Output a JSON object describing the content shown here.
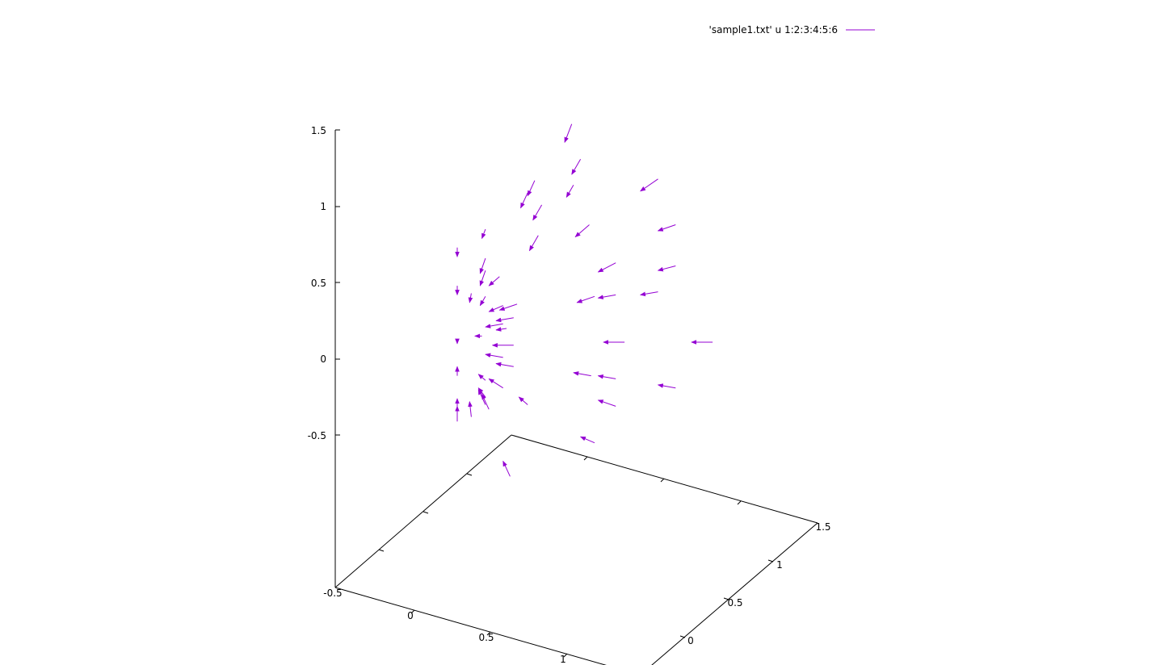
{
  "chart_data": {
    "type": "vector-field-3d",
    "legend": {
      "label": "'sample1.txt' u 1:2:3:4:5:6",
      "position": "top-right"
    },
    "color": "#9400d3",
    "z_ticks": [
      "1.5",
      "1",
      "0.5",
      "0",
      "-0.5"
    ],
    "x_ticks": [
      "-0.5",
      "0",
      "0.5",
      "1"
    ],
    "y_ticks": [
      "0",
      "0.5",
      "1",
      "1.5"
    ],
    "vectors": [
      {
        "x": 0.1,
        "y": 0.6,
        "z": 0.62,
        "dx": 0.0,
        "dy": 0.0,
        "dz": -0.06
      },
      {
        "x": 0.1,
        "y": 0.6,
        "z": 0.37,
        "dx": 0.0,
        "dy": 0.0,
        "dz": -0.06
      },
      {
        "x": 0.1,
        "y": 0.6,
        "z": 0.0,
        "dx": 0.0,
        "dy": 0.0,
        "dz": -0.01
      },
      {
        "x": 0.1,
        "y": 0.6,
        "z": -0.22,
        "dx": 0.0,
        "dy": 0.0,
        "dz": 0.06
      },
      {
        "x": 0.1,
        "y": 0.6,
        "z": -0.43,
        "dx": 0.0,
        "dy": 0.0,
        "dz": 0.06
      },
      {
        "x": 0.1,
        "y": 0.6,
        "z": -0.52,
        "dx": 0.0,
        "dy": 0.0,
        "dz": 0.1
      },
      {
        "x": 0.18,
        "y": 0.6,
        "z": 0.32,
        "dx": -0.01,
        "dy": 0.0,
        "dz": -0.06
      },
      {
        "x": 0.18,
        "y": 0.6,
        "z": -0.49,
        "dx": -0.01,
        "dy": 0.0,
        "dz": 0.1
      },
      {
        "x": 0.26,
        "y": 0.6,
        "z": 0.74,
        "dx": -0.02,
        "dy": 0.0,
        "dz": -0.06
      },
      {
        "x": 0.26,
        "y": 0.6,
        "z": 0.55,
        "dx": -0.03,
        "dy": 0.0,
        "dz": -0.1
      },
      {
        "x": 0.26,
        "y": 0.6,
        "z": 0.47,
        "dx": -0.03,
        "dy": 0.0,
        "dz": -0.1
      },
      {
        "x": 0.26,
        "y": 0.6,
        "z": 0.3,
        "dx": -0.03,
        "dy": 0.0,
        "dz": -0.06
      },
      {
        "x": 0.24,
        "y": 0.6,
        "z": 0.04,
        "dx": -0.04,
        "dy": 0.0,
        "dz": 0.0
      },
      {
        "x": 0.26,
        "y": 0.6,
        "z": -0.25,
        "dx": -0.04,
        "dy": 0.0,
        "dz": 0.04
      },
      {
        "x": 0.26,
        "y": 0.6,
        "z": -0.36,
        "dx": -0.04,
        "dy": 0.0,
        "dz": 0.06
      },
      {
        "x": 0.26,
        "y": 0.6,
        "z": -0.41,
        "dx": -0.04,
        "dy": 0.0,
        "dz": 0.1
      },
      {
        "x": 0.28,
        "y": 0.6,
        "z": -0.44,
        "dx": -0.04,
        "dy": 0.0,
        "dz": 0.1
      },
      {
        "x": 0.34,
        "y": 0.6,
        "z": 0.43,
        "dx": -0.06,
        "dy": 0.0,
        "dz": -0.06
      },
      {
        "x": 0.36,
        "y": 0.6,
        "z": 0.24,
        "dx": -0.08,
        "dy": 0.0,
        "dz": -0.04
      },
      {
        "x": 0.36,
        "y": 0.6,
        "z": 0.12,
        "dx": -0.1,
        "dy": 0.0,
        "dz": -0.02
      },
      {
        "x": 0.36,
        "y": 0.6,
        "z": -0.1,
        "dx": -0.1,
        "dy": 0.0,
        "dz": 0.02
      },
      {
        "x": 0.36,
        "y": 0.6,
        "z": -0.3,
        "dx": -0.08,
        "dy": 0.0,
        "dz": 0.06
      },
      {
        "x": 0.38,
        "y": 0.6,
        "z": 0.09,
        "dx": -0.06,
        "dy": 0.0,
        "dz": -0.01
      },
      {
        "x": 0.42,
        "y": 0.6,
        "z": 0.16,
        "dx": -0.1,
        "dy": 0.0,
        "dz": -0.02
      },
      {
        "x": 0.42,
        "y": 0.6,
        "z": -0.02,
        "dx": -0.12,
        "dy": 0.0,
        "dz": 0.0
      },
      {
        "x": 0.42,
        "y": 0.6,
        "z": -0.16,
        "dx": -0.1,
        "dy": 0.0,
        "dz": 0.02
      },
      {
        "x": 0.44,
        "y": 0.6,
        "z": 0.25,
        "dx": -0.1,
        "dy": 0.0,
        "dz": -0.04
      },
      {
        "x": 0.5,
        "y": 0.6,
        "z": 0.98,
        "dx": -0.04,
        "dy": 0.0,
        "dz": -0.1
      },
      {
        "x": 0.54,
        "y": 0.6,
        "z": 1.06,
        "dx": -0.04,
        "dy": 0.0,
        "dz": -0.1
      },
      {
        "x": 0.58,
        "y": 0.6,
        "z": 0.9,
        "dx": -0.05,
        "dy": 0.0,
        "dz": -0.1
      },
      {
        "x": 0.56,
        "y": 0.6,
        "z": 0.7,
        "dx": -0.05,
        "dy": 0.0,
        "dz": -0.1
      },
      {
        "x": 0.5,
        "y": 0.6,
        "z": -0.41,
        "dx": -0.05,
        "dy": 0.0,
        "dz": 0.05
      },
      {
        "x": 0.4,
        "y": 0.6,
        "z": -0.88,
        "dx": -0.04,
        "dy": 0.0,
        "dz": 0.1
      },
      {
        "x": 0.75,
        "y": 0.6,
        "z": 1.43,
        "dx": -0.04,
        "dy": 0.0,
        "dz": -0.12
      },
      {
        "x": 0.8,
        "y": 0.6,
        "z": 1.2,
        "dx": -0.05,
        "dy": 0.0,
        "dz": -0.1
      },
      {
        "x": 0.76,
        "y": 0.6,
        "z": 1.03,
        "dx": -0.04,
        "dy": 0.0,
        "dz": -0.08
      },
      {
        "x": 0.85,
        "y": 0.6,
        "z": 0.77,
        "dx": -0.08,
        "dy": 0.0,
        "dz": -0.08
      },
      {
        "x": 0.88,
        "y": 0.6,
        "z": 0.3,
        "dx": -0.1,
        "dy": 0.0,
        "dz": -0.04
      },
      {
        "x": 0.86,
        "y": 0.6,
        "z": -0.22,
        "dx": -0.1,
        "dy": 0.0,
        "dz": 0.02
      },
      {
        "x": 0.88,
        "y": 0.6,
        "z": -0.66,
        "dx": -0.08,
        "dy": 0.0,
        "dz": 0.04
      },
      {
        "x": 1.0,
        "y": 0.6,
        "z": 0.52,
        "dx": -0.1,
        "dy": 0.0,
        "dz": -0.06
      },
      {
        "x": 1.0,
        "y": 0.6,
        "z": 0.31,
        "dx": -0.1,
        "dy": 0.0,
        "dz": -0.02
      },
      {
        "x": 1.0,
        "y": 0.6,
        "z": -0.24,
        "dx": -0.1,
        "dy": 0.0,
        "dz": 0.02
      },
      {
        "x": 1.0,
        "y": 0.6,
        "z": -0.42,
        "dx": -0.1,
        "dy": 0.0,
        "dz": 0.04
      },
      {
        "x": 1.05,
        "y": 0.6,
        "z": 0.0,
        "dx": -0.12,
        "dy": 0.0,
        "dz": 0.0
      },
      {
        "x": 1.24,
        "y": 0.6,
        "z": 1.07,
        "dx": -0.1,
        "dy": 0.0,
        "dz": -0.08
      },
      {
        "x": 1.24,
        "y": 0.6,
        "z": 0.33,
        "dx": -0.1,
        "dy": 0.0,
        "dz": -0.02
      },
      {
        "x": 1.34,
        "y": 0.6,
        "z": 0.77,
        "dx": -0.1,
        "dy": 0.0,
        "dz": -0.04
      },
      {
        "x": 1.34,
        "y": 0.6,
        "z": 0.5,
        "dx": -0.1,
        "dy": 0.0,
        "dz": -0.03
      },
      {
        "x": 1.34,
        "y": 0.6,
        "z": -0.3,
        "dx": -0.1,
        "dy": 0.0,
        "dz": 0.02
      },
      {
        "x": 1.55,
        "y": 0.6,
        "z": 0.0,
        "dx": -0.12,
        "dy": 0.0,
        "dz": 0.0
      }
    ]
  }
}
